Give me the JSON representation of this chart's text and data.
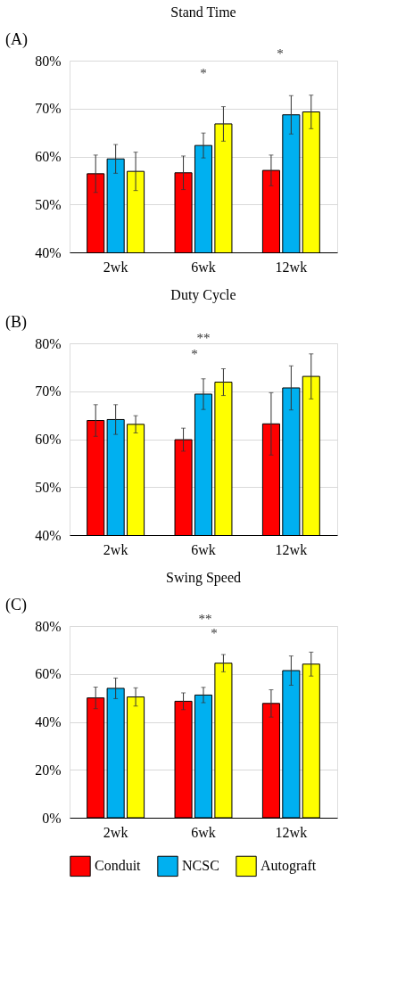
{
  "chart_data": [
    {
      "type": "bar",
      "title": "Stand Time",
      "annotations": [
        "(A)",
        "*",
        "*"
      ],
      "categories": [
        "2wk",
        "6wk",
        "12wk"
      ],
      "series": [
        {
          "color": "#ff0000",
          "values": [
            56.4,
            56.6,
            57.1
          ],
          "errors": [
            3.9,
            3.5,
            3.2
          ]
        },
        {
          "color": "#00b0f0",
          "values": [
            59.5,
            62.3,
            68.7
          ],
          "errors": [
            3.0,
            2.6,
            4.0
          ]
        },
        {
          "color": "#ffff00",
          "values": [
            56.9,
            66.8,
            69.3
          ],
          "errors": [
            4.0,
            3.6,
            3.5
          ]
        }
      ],
      "ylim": [
        40,
        80
      ],
      "yticks": [
        {
          "value": 40,
          "label": "40%"
        },
        {
          "value": 50,
          "label": "50%"
        },
        {
          "value": 60,
          "label": "60%"
        },
        {
          "value": 70,
          "label": "70%"
        },
        {
          "value": 80,
          "label": "80%"
        }
      ],
      "grid": "y",
      "legend": false
    },
    {
      "type": "bar",
      "title": "Duty Cycle",
      "annotations": [
        "(B)",
        "**",
        "*"
      ],
      "categories": [
        "2wk",
        "6wk",
        "12wk"
      ],
      "series": [
        {
          "color": "#ff0000",
          "values": [
            63.9,
            59.9,
            63.2
          ],
          "errors": [
            3.3,
            2.4,
            6.5
          ]
        },
        {
          "color": "#00b0f0",
          "values": [
            64.1,
            69.4,
            70.7
          ],
          "errors": [
            3.1,
            3.2,
            4.6
          ]
        },
        {
          "color": "#ffff00",
          "values": [
            63.1,
            71.9,
            73.1
          ],
          "errors": [
            1.8,
            2.8,
            4.7
          ]
        }
      ],
      "ylim": [
        40,
        80
      ],
      "yticks": [
        {
          "value": 40,
          "label": "40%"
        },
        {
          "value": 50,
          "label": "50%"
        },
        {
          "value": 60,
          "label": "60%"
        },
        {
          "value": 70,
          "label": "70%"
        },
        {
          "value": 80,
          "label": "80%"
        }
      ],
      "grid": "y",
      "legend": false
    },
    {
      "type": "bar",
      "title": "Swing Speed",
      "annotations": [
        "(C)",
        "**",
        "*"
      ],
      "categories": [
        "2wk",
        "6wk",
        "12wk"
      ],
      "series": [
        {
          "name": "Conduit",
          "color": "#ff0000",
          "values": [
            50.0,
            48.6,
            47.7
          ],
          "errors": [
            4.5,
            3.5,
            5.7
          ]
        },
        {
          "name": "NCSC",
          "color": "#00b0f0",
          "values": [
            54.0,
            51.2,
            61.4
          ],
          "errors": [
            4.3,
            3.2,
            6.1
          ]
        },
        {
          "name": "Autograft",
          "color": "#ffff00",
          "values": [
            50.4,
            64.5,
            64.1
          ],
          "errors": [
            3.8,
            3.6,
            5.0
          ]
        }
      ],
      "ylim": [
        0,
        80
      ],
      "yticks": [
        {
          "value": 0,
          "label": "0%"
        },
        {
          "value": 20,
          "label": "20%"
        },
        {
          "value": 40,
          "label": "40%"
        },
        {
          "value": 60,
          "label": "60%"
        },
        {
          "value": 80,
          "label": "80%"
        }
      ],
      "grid": "y",
      "legend": "bottom"
    }
  ]
}
